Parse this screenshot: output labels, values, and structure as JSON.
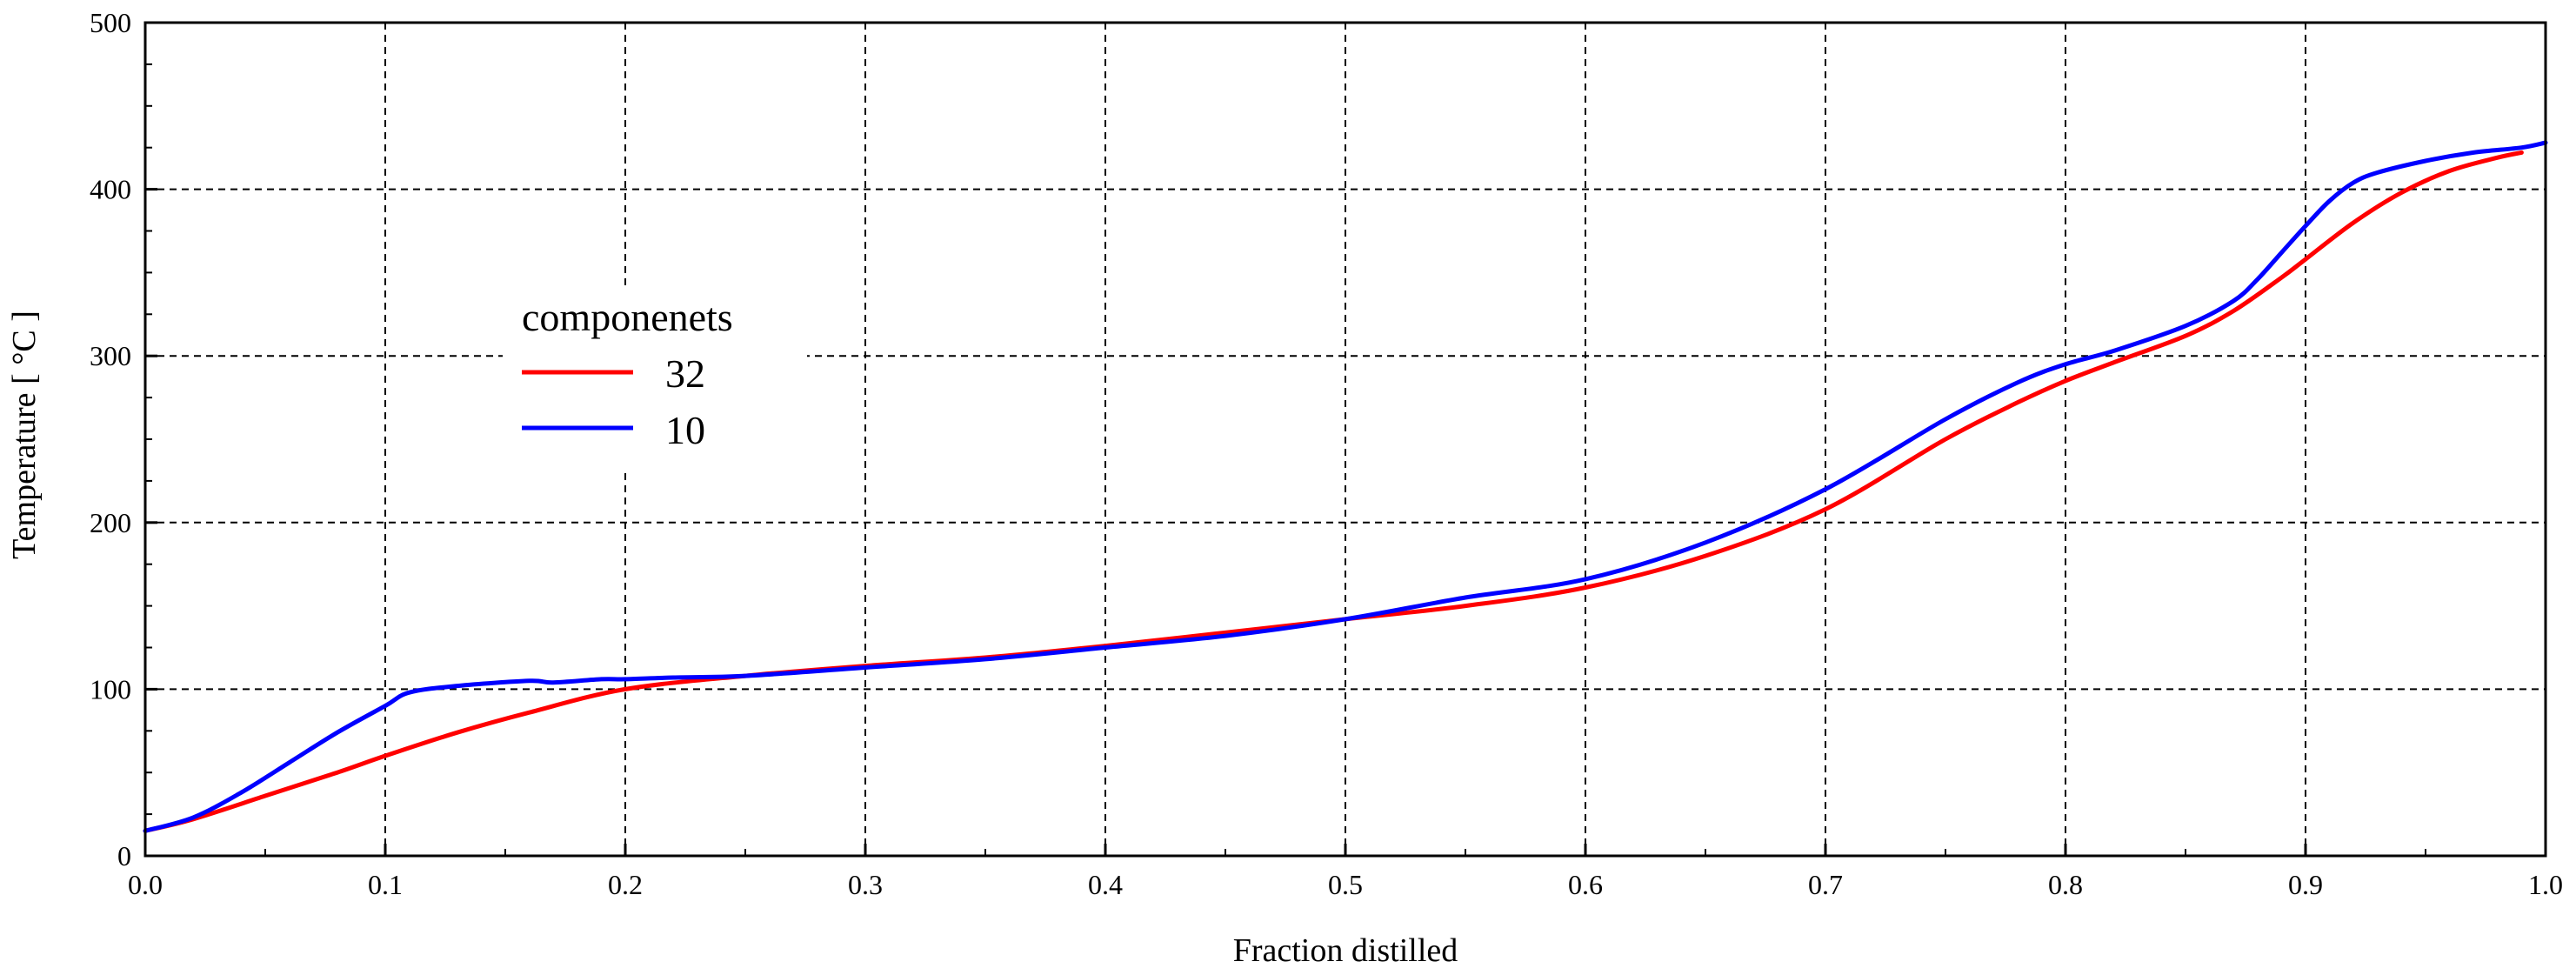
{
  "chart_data": {
    "type": "line",
    "title": "",
    "xlabel": "Fraction distilled",
    "ylabel": "Temperature  [ °C ]",
    "xlim": [
      0.0,
      1.0
    ],
    "ylim": [
      0,
      500
    ],
    "xticks": [
      "0.0",
      "0.1",
      "0.2",
      "0.3",
      "0.4",
      "0.5",
      "0.6",
      "0.7",
      "0.8",
      "0.9",
      "1.0"
    ],
    "yticks": [
      "0",
      "100",
      "200",
      "300",
      "400",
      "500"
    ],
    "grid": true,
    "legend": {
      "title": "componenets",
      "position": "upper-left"
    },
    "series": [
      {
        "name": "32",
        "color": "#ff0000",
        "x": [
          0.0,
          0.02,
          0.05,
          0.08,
          0.1,
          0.13,
          0.16,
          0.2,
          0.25,
          0.3,
          0.35,
          0.4,
          0.45,
          0.5,
          0.55,
          0.6,
          0.65,
          0.7,
          0.75,
          0.78,
          0.8,
          0.82,
          0.85,
          0.87,
          0.89,
          0.9,
          0.92,
          0.94,
          0.96,
          0.98,
          0.99
        ],
        "y": [
          15,
          22,
          36,
          50,
          60,
          74,
          86,
          100,
          108,
          114,
          119,
          126,
          134,
          142,
          150,
          161,
          180,
          208,
          250,
          272,
          285,
          296,
          312,
          327,
          347,
          358,
          380,
          398,
          411,
          419,
          422
        ]
      },
      {
        "name": "10",
        "color": "#0000ff",
        "x": [
          0.0,
          0.02,
          0.04,
          0.06,
          0.08,
          0.1,
          0.11,
          0.13,
          0.16,
          0.17,
          0.19,
          0.2,
          0.22,
          0.25,
          0.3,
          0.35,
          0.4,
          0.45,
          0.5,
          0.55,
          0.6,
          0.65,
          0.7,
          0.75,
          0.78,
          0.8,
          0.82,
          0.85,
          0.87,
          0.88,
          0.89,
          0.9,
          0.91,
          0.92,
          0.93,
          0.95,
          0.97,
          0.99,
          1.0
        ],
        "y": [
          15,
          23,
          38,
          56,
          74,
          90,
          98,
          102,
          105,
          104,
          106,
          106,
          107,
          108,
          113,
          118,
          125,
          132,
          142,
          155,
          166,
          188,
          220,
          262,
          284,
          295,
          303,
          318,
          333,
          346,
          362,
          378,
          393,
          404,
          410,
          417,
          422,
          425,
          428
        ]
      }
    ]
  }
}
